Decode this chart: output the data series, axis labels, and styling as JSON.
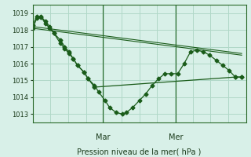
{
  "title": "Pression niveau de la mer( hPa )",
  "background_color": "#d8f0e8",
  "grid_color": "#b0d8c8",
  "line_color": "#1a5c1a",
  "ylim": [
    1012.5,
    1019.5
  ],
  "yticks": [
    1013,
    1014,
    1015,
    1016,
    1017,
    1018,
    1019
  ],
  "x_day_labels": [
    [
      "Mar",
      0.33
    ],
    [
      "Mer",
      0.67
    ]
  ],
  "series": [
    {
      "x": [
        0.0,
        0.02,
        0.04,
        0.06,
        0.08,
        0.1,
        0.13,
        0.15,
        0.17,
        0.19,
        0.21,
        0.24,
        0.26,
        0.29,
        0.31,
        0.34,
        0.36,
        0.39,
        0.42,
        0.44,
        0.47,
        0.5,
        0.53,
        0.56,
        0.59,
        0.62,
        0.65,
        0.68,
        0.71,
        0.74,
        0.77,
        0.8,
        0.83,
        0.86,
        0.89,
        0.92,
        0.95,
        0.98
      ],
      "y": [
        1018.3,
        1018.8,
        1018.8,
        1018.5,
        1018.2,
        1017.8,
        1017.4,
        1017.0,
        1016.7,
        1016.3,
        1015.9,
        1015.5,
        1015.1,
        1014.7,
        1014.3,
        1013.8,
        1013.4,
        1013.1,
        1013.0,
        1013.1,
        1013.4,
        1013.8,
        1014.2,
        1014.7,
        1015.1,
        1015.4,
        1015.4,
        1015.4,
        1016.0,
        1016.7,
        1016.8,
        1016.7,
        1016.5,
        1016.2,
        1015.9,
        1015.6,
        1015.2,
        1015.2
      ]
    },
    {
      "x": [
        0.0,
        0.02,
        0.04,
        0.06,
        0.08,
        0.1,
        0.13,
        0.15,
        0.17,
        0.19,
        0.21,
        0.24,
        0.26,
        0.29,
        0.95,
        0.98
      ],
      "y": [
        1018.1,
        1018.7,
        1018.75,
        1018.4,
        1018.1,
        1017.8,
        1017.2,
        1016.9,
        1016.6,
        1016.3,
        1015.9,
        1015.5,
        1015.1,
        1014.6,
        1015.2,
        1015.2
      ]
    },
    {
      "x": [
        0.0,
        0.98
      ],
      "y": [
        1018.1,
        1016.5
      ]
    },
    {
      "x": [
        0.0,
        0.98
      ],
      "y": [
        1018.2,
        1016.6
      ]
    }
  ]
}
